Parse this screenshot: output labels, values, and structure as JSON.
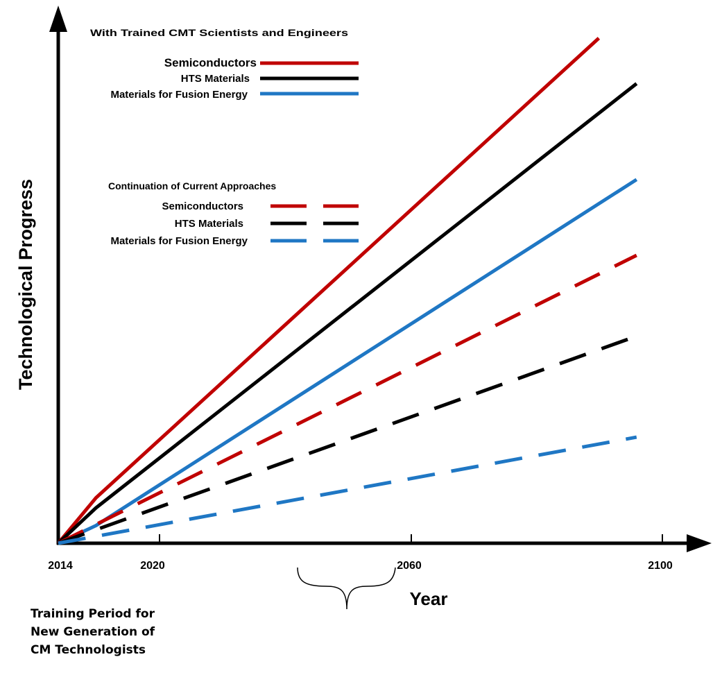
{
  "chart_data": {
    "type": "line",
    "ylabel": "Technological Progress",
    "xlabel": "Year",
    "x_ticks": [
      "2014",
      "2020",
      "2060",
      "2100"
    ],
    "groups": [
      {
        "title": "With Trained CMT Scientists and Engineers",
        "style": "solid",
        "series": [
          {
            "name": "Semiconductors",
            "color": "#c00000",
            "points": [
              [
                2014,
                0
              ],
              [
                2020,
                0.09
              ],
              [
                2100,
                1.0
              ]
            ]
          },
          {
            "name": "HTS Materials",
            "color": "#000000",
            "points": [
              [
                2014,
                0
              ],
              [
                2020,
                0.07
              ],
              [
                2106,
                0.91
              ]
            ]
          },
          {
            "name": "Materials for Fusion Energy",
            "color": "#1f77c4",
            "points": [
              [
                2014,
                0
              ],
              [
                2020,
                0.035
              ],
              [
                2106,
                0.72
              ]
            ]
          }
        ]
      },
      {
        "title": "Continuation  of Current Approaches",
        "style": "dashed",
        "series": [
          {
            "name": "Semiconductors",
            "color": "#c00000",
            "points": [
              [
                2014,
                0
              ],
              [
                2106,
                0.57
              ]
            ]
          },
          {
            "name": "HTS Materials",
            "color": "#000000",
            "points": [
              [
                2014,
                0
              ],
              [
                2106,
                0.41
              ]
            ]
          },
          {
            "name": "Materials for Fusion Energy",
            "color": "#1f77c4",
            "points": [
              [
                2014,
                0
              ],
              [
                2106,
                0.21
              ]
            ]
          }
        ]
      }
    ]
  },
  "annotation": {
    "lines": [
      "Training Period for",
      "New Generation of",
      "CM Technologists"
    ]
  }
}
